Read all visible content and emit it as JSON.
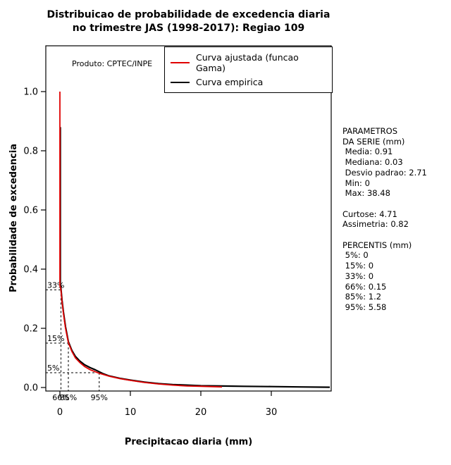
{
  "title": {
    "line1": "Distribuicao de probabilidade de excedencia diaria",
    "line2": "no trimestre JAS (1998-2017): Regiao 109"
  },
  "annotations": {
    "product": "Produto: CPTEC/INPE"
  },
  "legend": [
    {
      "label": "Curva ajustada (funcao Gama)",
      "color": "#e00000"
    },
    {
      "label": "Curva empirica",
      "color": "#000000"
    }
  ],
  "axes": {
    "x_title": "Precipitacao diaria (mm)",
    "y_title": "Probabilidade de excedencia",
    "x_ticks": [
      0,
      10,
      20,
      30
    ],
    "y_ticks": [
      "1.0",
      "0.8",
      "0.6",
      "0.4",
      "0.2",
      "0.0"
    ]
  },
  "stats_panel": {
    "lines": [
      "PARAMETROS",
      "DA SERIE (mm)",
      " Media: 0.91",
      " Mediana: 0.03",
      " Desvio padrao: 2.71",
      " Min: 0",
      " Max: 38.48",
      "",
      "Curtose: 4.71",
      "Assimetria: 0.82",
      "",
      "PERCENTIS (mm)",
      " 5%: 0",
      " 15%: 0",
      " 33%: 0",
      " 66%: 0.15",
      " 85%: 1.2",
      " 95%: 5.58"
    ]
  },
  "chart_data": {
    "type": "line",
    "title": "Distribuicao de probabilidade de excedencia diaria no trimestre JAS (1998-2017): Regiao 109",
    "xlabel": "Precipitacao diaria (mm)",
    "ylabel": "Probabilidade de excedencia",
    "xlim": [
      0,
      38.48
    ],
    "ylim": [
      0,
      1.0
    ],
    "grid": false,
    "legend_position": "top-right",
    "series": [
      {
        "name": "Curva ajustada (funcao Gama)",
        "color": "#e00000",
        "x": [
          0,
          0,
          0.15,
          0.3,
          0.5,
          0.8,
          1.2,
          1.7,
          2.2,
          2.8,
          3.5,
          4.3,
          5.58,
          7,
          8.5,
          10,
          12,
          14,
          16,
          18,
          20,
          23
        ],
        "y": [
          1.0,
          0.345,
          0.33,
          0.29,
          0.25,
          0.2,
          0.152,
          0.122,
          0.1,
          0.085,
          0.071,
          0.06,
          0.048,
          0.038,
          0.03,
          0.024,
          0.017,
          0.012,
          0.008,
          0.005,
          0.004,
          0.002
        ]
      },
      {
        "name": "Curva empirica",
        "color": "#000000",
        "x": [
          0.06,
          0.06,
          0.15,
          0.3,
          0.5,
          0.8,
          1.2,
          1.7,
          2.2,
          2.8,
          3.5,
          4.3,
          5.0,
          5.58,
          6.2,
          7,
          8.5,
          10,
          12,
          14,
          16,
          18,
          20,
          23,
          26,
          30,
          34,
          38.3
        ],
        "y": [
          0.88,
          0.35,
          0.335,
          0.295,
          0.255,
          0.205,
          0.155,
          0.125,
          0.105,
          0.09,
          0.077,
          0.067,
          0.06,
          0.053,
          0.046,
          0.039,
          0.031,
          0.025,
          0.018,
          0.013,
          0.01,
          0.008,
          0.006,
          0.005,
          0.004,
          0.003,
          0.002,
          0.001
        ]
      }
    ],
    "percentiles": [
      {
        "label_y": "33%",
        "prob": 0.33,
        "label_x": "66%",
        "value": 0.15
      },
      {
        "label_y": "15%",
        "prob": 0.15,
        "label_x": "85%",
        "value": 1.2
      },
      {
        "label_y": "5%",
        "prob": 0.05,
        "label_x": "95%",
        "value": 5.58
      }
    ]
  }
}
